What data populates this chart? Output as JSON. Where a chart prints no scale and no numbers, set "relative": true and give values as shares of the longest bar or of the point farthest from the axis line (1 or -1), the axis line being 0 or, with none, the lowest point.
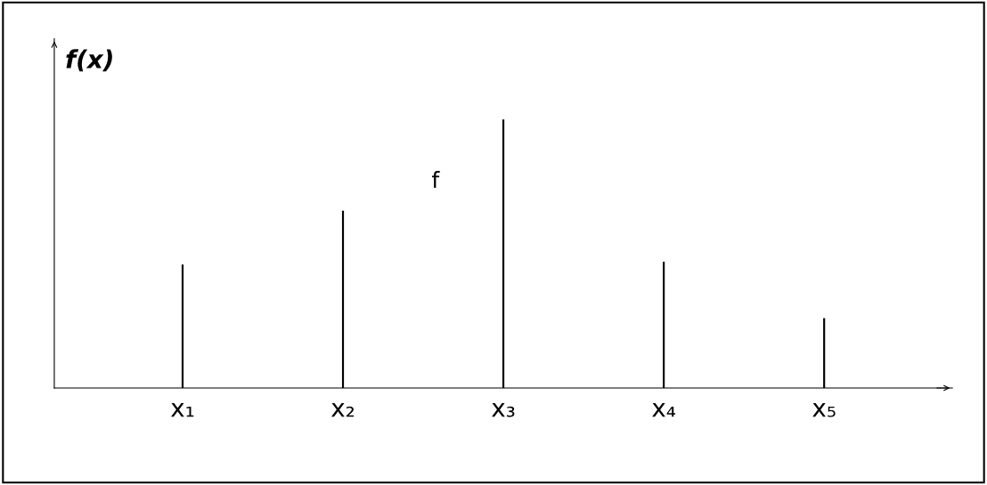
{
  "chart_data": {
    "type": "bar",
    "relative": true,
    "ylabel": "f(x)",
    "categories": [
      "x₁",
      "x₂",
      "x₃",
      "x₄",
      "x₅"
    ],
    "values": [
      0.46,
      0.66,
      1,
      0.47,
      0.26
    ],
    "color": "#000000",
    "annotations": [
      "f"
    ],
    "grid": false,
    "legend": false
  }
}
